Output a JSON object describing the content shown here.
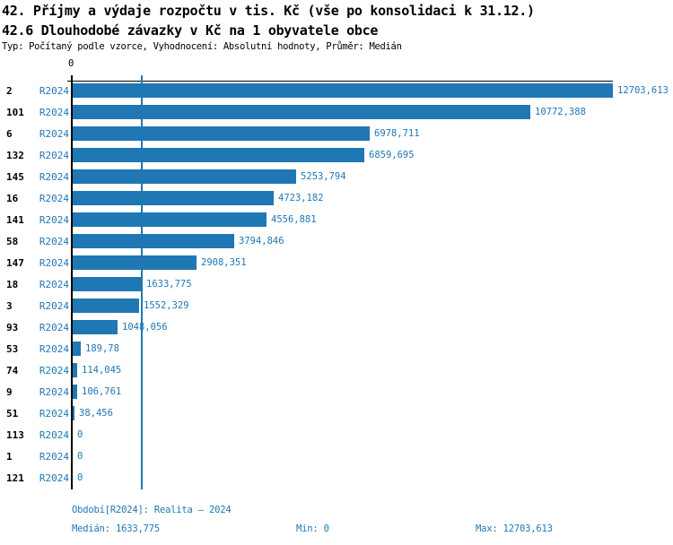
{
  "accent_color": "#1f77b4",
  "header": {
    "title_line1": "42. Příjmy a výdaje rozpočtu v tis. Kč (vše po konsolidaci k 31.12.)",
    "title_line2": "42.6 Dlouhodobé závazky v Kč na 1 obyvatele obce",
    "meta": "Typ: Počítaný podle vzorce, Vyhodnocení: Absolutní hodnoty, Průměr: Medián"
  },
  "chart_data": {
    "type": "bar",
    "orientation": "horizontal",
    "title": "42.6 Dlouhodobé závazky v Kč na 1 obyvatele obce",
    "series_period": "R2024",
    "categories": [
      "2",
      "101",
      "6",
      "132",
      "145",
      "16",
      "141",
      "58",
      "147",
      "18",
      "3",
      "93",
      "53",
      "74",
      "9",
      "51",
      "113",
      "1",
      "121"
    ],
    "values": [
      12703.613,
      10772.388,
      6978.711,
      6859.695,
      5253.794,
      4723.182,
      4556.881,
      3794.846,
      2908.351,
      1633.775,
      1552.329,
      1048.056,
      189.78,
      114.045,
      106.761,
      38.456,
      0,
      0,
      0
    ],
    "value_labels": [
      "12703,613",
      "10772,388",
      "6978,711",
      "6859,695",
      "5253,794",
      "4723,182",
      "4556,881",
      "3794,846",
      "2908,351",
      "1633,775",
      "1552,329",
      "1048,056",
      "189,78",
      "114,045",
      "106,761",
      "38,456",
      "0",
      "0",
      "0"
    ],
    "x_axis": {
      "tick_labels": [
        "0"
      ],
      "range": [
        0,
        12703.613
      ]
    },
    "median": 1633.775,
    "grid": false,
    "legend_position": "none",
    "bar_color": "#1f77b4"
  },
  "footer": {
    "period_line": "Období[R2024]: Realita – 2024",
    "median_label": "Medián: 1633,775",
    "min_label": "Min: 0",
    "max_label": "Max: 12703,613"
  }
}
